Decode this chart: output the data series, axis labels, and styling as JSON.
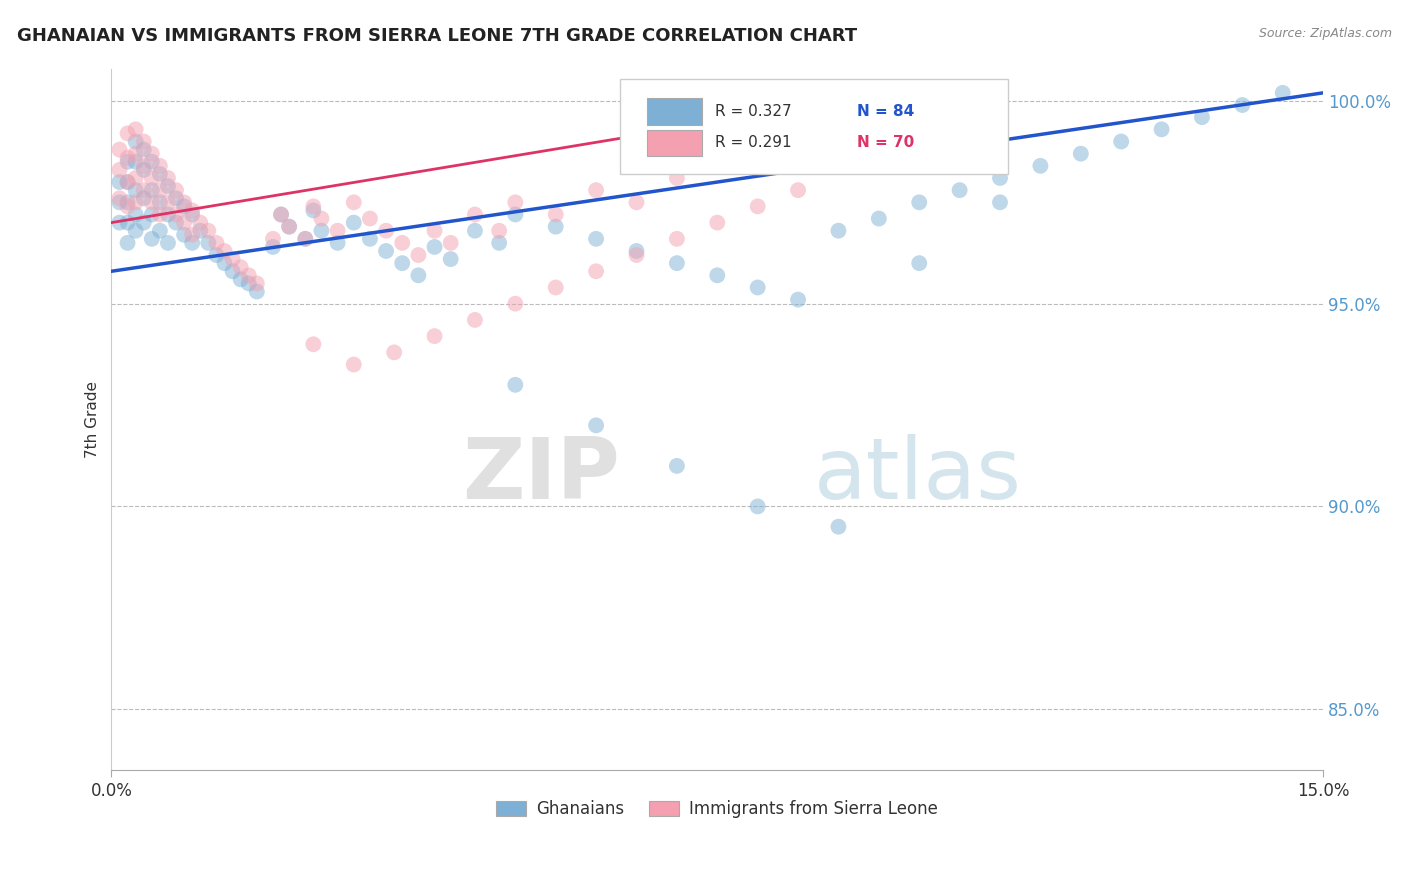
{
  "title": "GHANAIAN VS IMMIGRANTS FROM SIERRA LEONE 7TH GRADE CORRELATION CHART",
  "source": "Source: ZipAtlas.com",
  "ylabel": "7th Grade",
  "right_yticks": [
    "100.0%",
    "95.0%",
    "90.0%",
    "85.0%"
  ],
  "right_ytick_vals": [
    1.0,
    0.95,
    0.9,
    0.85
  ],
  "xlim": [
    0.0,
    0.15
  ],
  "ylim": [
    0.835,
    1.008
  ],
  "legend_blue_r": "R = 0.327",
  "legend_blue_n": "N = 84",
  "legend_pink_r": "R = 0.291",
  "legend_pink_n": "N = 70",
  "blue_color": "#7EB0D5",
  "pink_color": "#F4A0B0",
  "blue_line_color": "#2255CC",
  "pink_line_color": "#DD3366",
  "blue_trend_x": [
    0.0,
    0.15
  ],
  "blue_trend_y": [
    0.958,
    1.002
  ],
  "pink_trend_x": [
    0.0,
    0.1
  ],
  "pink_trend_y": [
    0.97,
    1.003
  ],
  "blue_scatter_x": [
    0.001,
    0.001,
    0.001,
    0.002,
    0.002,
    0.002,
    0.002,
    0.002,
    0.003,
    0.003,
    0.003,
    0.003,
    0.003,
    0.004,
    0.004,
    0.004,
    0.004,
    0.005,
    0.005,
    0.005,
    0.005,
    0.006,
    0.006,
    0.006,
    0.007,
    0.007,
    0.007,
    0.008,
    0.008,
    0.009,
    0.009,
    0.01,
    0.01,
    0.011,
    0.012,
    0.013,
    0.014,
    0.015,
    0.016,
    0.017,
    0.018,
    0.02,
    0.021,
    0.022,
    0.024,
    0.025,
    0.026,
    0.028,
    0.03,
    0.032,
    0.034,
    0.036,
    0.038,
    0.04,
    0.042,
    0.045,
    0.048,
    0.05,
    0.055,
    0.06,
    0.065,
    0.07,
    0.075,
    0.08,
    0.085,
    0.09,
    0.095,
    0.1,
    0.105,
    0.11,
    0.115,
    0.12,
    0.125,
    0.13,
    0.135,
    0.14,
    0.145,
    0.05,
    0.06,
    0.07,
    0.08,
    0.09,
    0.1,
    0.11
  ],
  "blue_scatter_y": [
    0.98,
    0.975,
    0.97,
    0.985,
    0.98,
    0.975,
    0.97,
    0.965,
    0.99,
    0.985,
    0.978,
    0.972,
    0.968,
    0.988,
    0.983,
    0.976,
    0.97,
    0.985,
    0.978,
    0.972,
    0.966,
    0.982,
    0.975,
    0.968,
    0.979,
    0.972,
    0.965,
    0.976,
    0.97,
    0.974,
    0.967,
    0.972,
    0.965,
    0.968,
    0.965,
    0.962,
    0.96,
    0.958,
    0.956,
    0.955,
    0.953,
    0.964,
    0.972,
    0.969,
    0.966,
    0.973,
    0.968,
    0.965,
    0.97,
    0.966,
    0.963,
    0.96,
    0.957,
    0.964,
    0.961,
    0.968,
    0.965,
    0.972,
    0.969,
    0.966,
    0.963,
    0.96,
    0.957,
    0.954,
    0.951,
    0.968,
    0.971,
    0.975,
    0.978,
    0.981,
    0.984,
    0.987,
    0.99,
    0.993,
    0.996,
    0.999,
    1.002,
    0.93,
    0.92,
    0.91,
    0.9,
    0.895,
    0.96,
    0.975
  ],
  "pink_scatter_x": [
    0.001,
    0.001,
    0.001,
    0.002,
    0.002,
    0.002,
    0.002,
    0.003,
    0.003,
    0.003,
    0.003,
    0.004,
    0.004,
    0.004,
    0.005,
    0.005,
    0.005,
    0.006,
    0.006,
    0.006,
    0.007,
    0.007,
    0.008,
    0.008,
    0.009,
    0.009,
    0.01,
    0.01,
    0.011,
    0.012,
    0.013,
    0.014,
    0.015,
    0.016,
    0.017,
    0.018,
    0.02,
    0.021,
    0.022,
    0.024,
    0.025,
    0.026,
    0.028,
    0.03,
    0.032,
    0.034,
    0.036,
    0.038,
    0.04,
    0.042,
    0.045,
    0.048,
    0.05,
    0.055,
    0.06,
    0.065,
    0.07,
    0.025,
    0.03,
    0.035,
    0.04,
    0.045,
    0.05,
    0.055,
    0.06,
    0.065,
    0.07,
    0.075,
    0.08,
    0.085
  ],
  "pink_scatter_y": [
    0.988,
    0.983,
    0.976,
    0.992,
    0.986,
    0.98,
    0.974,
    0.993,
    0.987,
    0.981,
    0.975,
    0.99,
    0.984,
    0.978,
    0.987,
    0.981,
    0.975,
    0.984,
    0.978,
    0.972,
    0.981,
    0.975,
    0.978,
    0.972,
    0.975,
    0.97,
    0.973,
    0.967,
    0.97,
    0.968,
    0.965,
    0.963,
    0.961,
    0.959,
    0.957,
    0.955,
    0.966,
    0.972,
    0.969,
    0.966,
    0.974,
    0.971,
    0.968,
    0.975,
    0.971,
    0.968,
    0.965,
    0.962,
    0.968,
    0.965,
    0.972,
    0.968,
    0.975,
    0.972,
    0.978,
    0.975,
    0.981,
    0.94,
    0.935,
    0.938,
    0.942,
    0.946,
    0.95,
    0.954,
    0.958,
    0.962,
    0.966,
    0.97,
    0.974,
    0.978
  ]
}
